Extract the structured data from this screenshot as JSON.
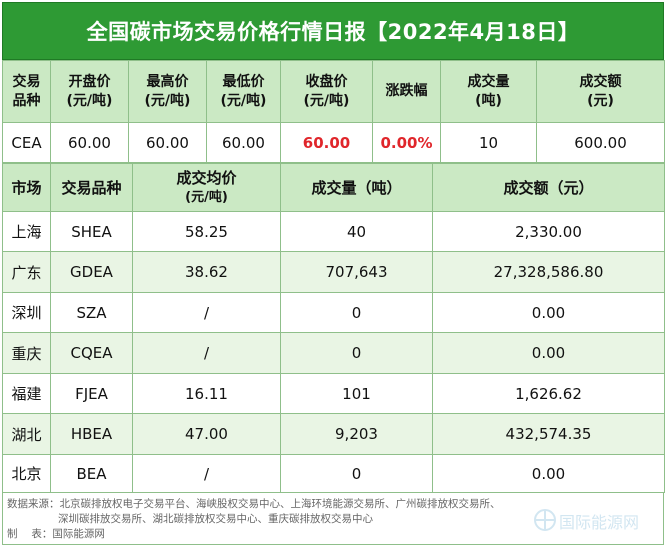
{
  "title": "全国碳市场交易价格行情日报【2022年4月18日】",
  "national": {
    "headers": [
      [
        "交易",
        "品种"
      ],
      [
        "开盘价",
        "(元/吨)"
      ],
      [
        "最高价",
        "(元/吨)"
      ],
      [
        "最低价",
        "(元/吨)"
      ],
      [
        "收盘价",
        "(元/吨)"
      ],
      [
        "涨跌幅",
        ""
      ],
      [
        "成交量",
        "(吨)"
      ],
      [
        "成交额",
        "(元)"
      ]
    ],
    "row": {
      "product": "CEA",
      "open": "60.00",
      "high": "60.00",
      "low": "60.00",
      "close": "60.00",
      "change": "0.00%",
      "volume": "10",
      "amount": "600.00"
    }
  },
  "regional": {
    "headers": {
      "market": "市场",
      "product": "交易品种",
      "avg_price": "成交均价",
      "avg_price_unit": "(元/吨)",
      "volume": "成交量（吨）",
      "amount": "成交额（元）"
    },
    "rows": [
      {
        "market": "上海",
        "product": "SHEA",
        "avg": "58.25",
        "volume": "40",
        "amount": "2,330.00"
      },
      {
        "market": "广东",
        "product": "GDEA",
        "avg": "38.62",
        "volume": "707,643",
        "amount": "27,328,586.80"
      },
      {
        "market": "深圳",
        "product": "SZA",
        "avg": "/",
        "volume": "0",
        "amount": "0.00"
      },
      {
        "market": "重庆",
        "product": "CQEA",
        "avg": "/",
        "volume": "0",
        "amount": "0.00"
      },
      {
        "market": "福建",
        "product": "FJEA",
        "avg": "16.11",
        "volume": "101",
        "amount": "1,626.62"
      },
      {
        "market": "湖北",
        "product": "HBEA",
        "avg": "47.00",
        "volume": "9,203",
        "amount": "432,574.35"
      },
      {
        "market": "北京",
        "product": "BEA",
        "avg": "/",
        "volume": "0",
        "amount": "0.00"
      }
    ]
  },
  "footer": {
    "source_line1": "数据来源：北京碳排放权电子交易平台、海峡股权交易中心、上海环境能源交易所、广州碳排放权交易所、",
    "source_line2": "深圳碳排放交易所、湖北碳排放权交易中心、重庆碳排放权交易中心",
    "maker": "制　 表：国际能源网"
  },
  "watermark_text": "国际能源网",
  "colors": {
    "title_bg": "#2e9a34",
    "header_bg": "#cbe9c4",
    "stripe_bg": "#e9f5e4",
    "highlight_red": "#e0262b",
    "border": "#8fbf8a"
  }
}
